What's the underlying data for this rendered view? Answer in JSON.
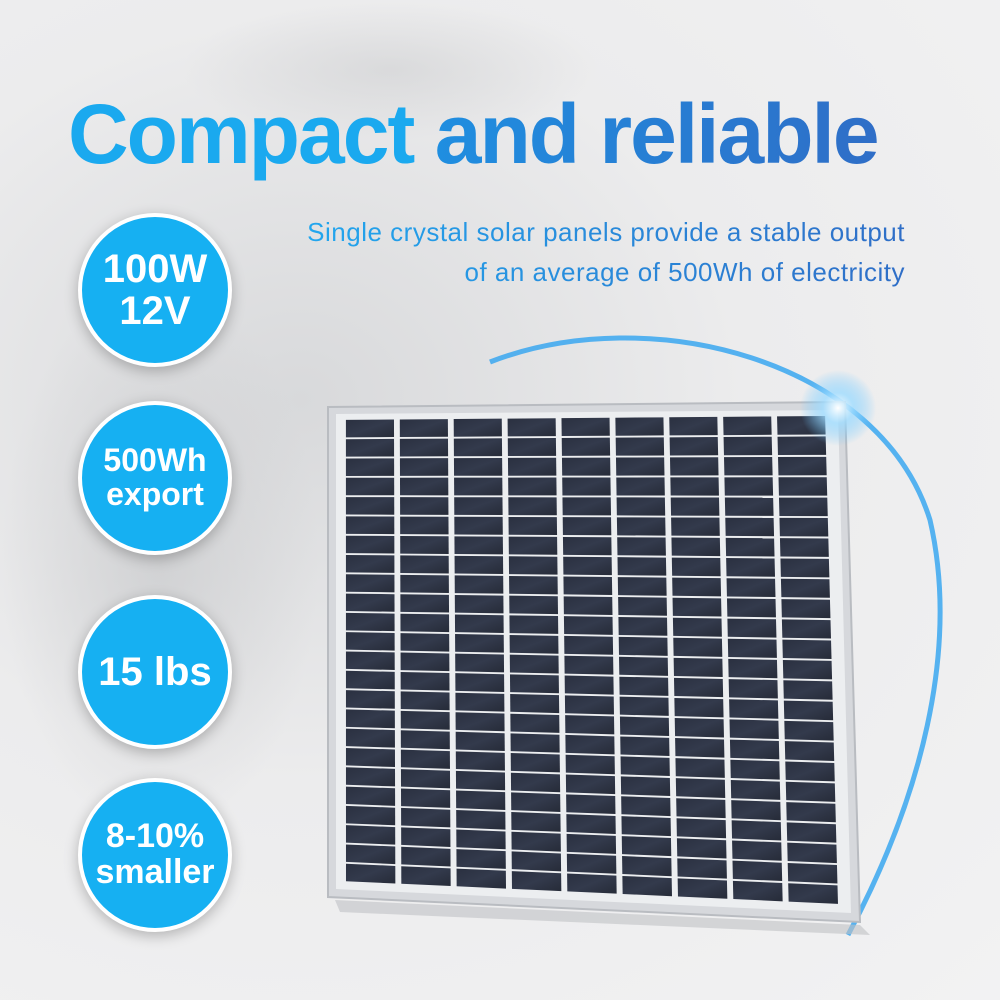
{
  "headline": {
    "part1": "Compact",
    "part2": "and reliable"
  },
  "subtitle": {
    "line1": "Single crystal solar panels provide a stable output",
    "line2": "of an average of 500Wh of electricity"
  },
  "badges": [
    {
      "line1": "100W",
      "line2": "12V"
    },
    {
      "line1": "500Wh",
      "line2": "export"
    },
    {
      "line1": "15 lbs",
      "line2": ""
    },
    {
      "line1": "8-10%",
      "line2": "smaller"
    }
  ],
  "colors": {
    "accent": "#16b0f2",
    "accent_dark": "#2f6ec7",
    "panel_cell": "#2b3140",
    "frame": "#d6d8dc"
  }
}
